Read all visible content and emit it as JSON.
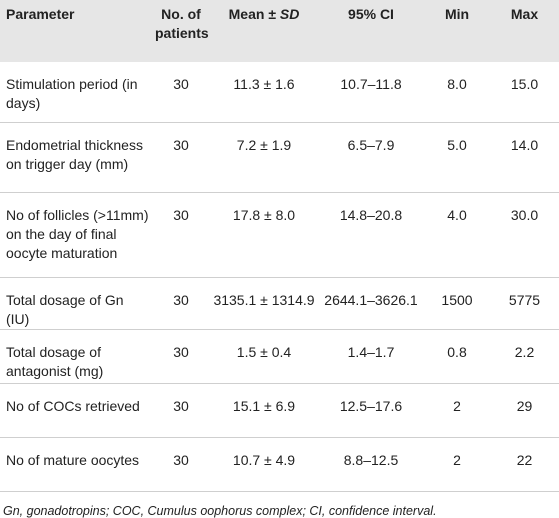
{
  "table": {
    "header": [
      "Parameter",
      "No. of patients",
      [
        "Mean ± ",
        "SD"
      ],
      "95% CI",
      "Min",
      "Max"
    ],
    "rows": [
      [
        "Stimulation period (in days)",
        "30",
        "11.3 ± 1.6",
        "10.7–11.8",
        "8.0",
        "15.0"
      ],
      [
        "Endometrial thickness on trigger day (mm)",
        "30",
        "7.2 ± 1.9",
        "6.5–7.9",
        "5.0",
        "14.0"
      ],
      [
        "No of follicles (>11mm) on the day of final oocyte maturation",
        "30",
        "17.8 ± 8.0",
        "14.8–20.8",
        "4.0",
        "30.0"
      ],
      [
        "Total dosage of Gn (IU)",
        "30",
        "3135.1 ± 1314.9",
        "2644.1–3626.1",
        "1500",
        "5775"
      ],
      [
        "Total dosage of antagonist (mg)",
        "30",
        "1.5 ± 0.4",
        "1.4–1.7",
        "0.8",
        "2.2"
      ],
      [
        "No of COCs retrieved",
        "30",
        "15.1 ± 6.9",
        "12.5–17.6",
        "2",
        "29"
      ],
      [
        "No of mature oocytes",
        "30",
        "10.7 ± 4.9",
        "8.8–12.5",
        "2",
        "22"
      ]
    ]
  },
  "footnote": "Gn, gonadotropins; COC, Cumulus oophorus complex; CI, confidence interval."
}
